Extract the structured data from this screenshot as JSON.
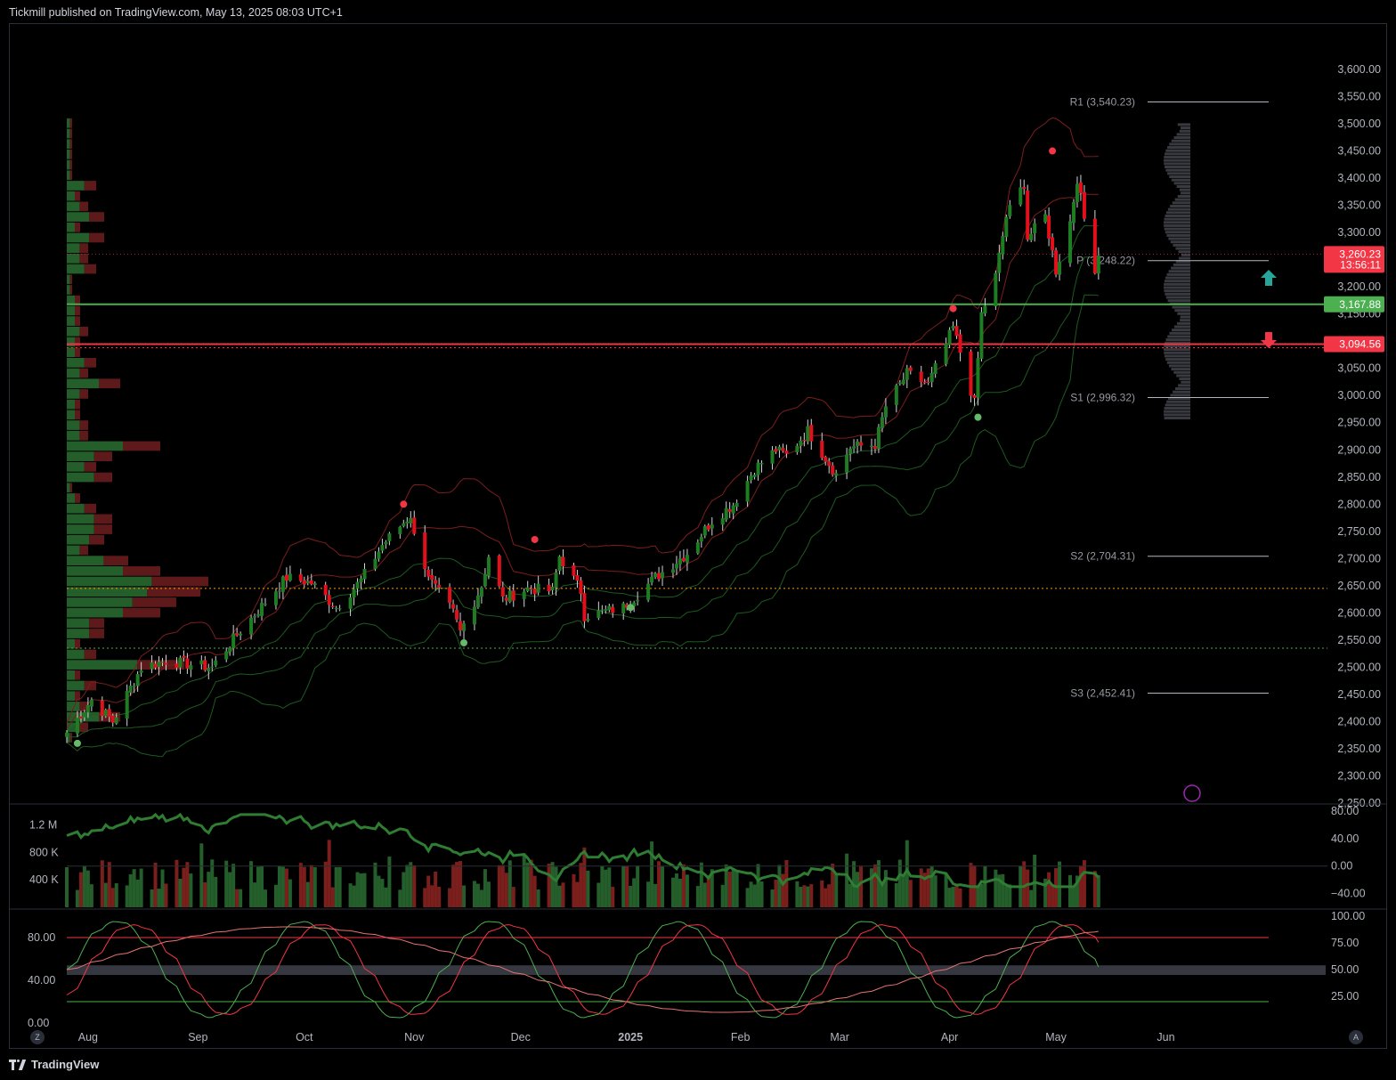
{
  "header": {
    "text": "Tickmill published on TradingView.com, May 13, 2025 08:03 UTC+1"
  },
  "footer": {
    "brand": "TradingView"
  },
  "buttons": {
    "left": "Z",
    "right": "A"
  },
  "colors": {
    "up": "#1e7d22",
    "down": "#e3101c",
    "bg": "#000000",
    "support": "#4caf50",
    "resistance": "#f23645",
    "poc": "#ff9800",
    "pivot_line": "#b2b5be",
    "bb_red": "#7a1f1c",
    "bb_green": "#1d5a1f",
    "vp_up": "#245e2b",
    "vp_down": "#5e1a1a"
  },
  "price_axis": {
    "ticks": [
      "3,600.00",
      "3,550.00",
      "3,500.00",
      "3,450.00",
      "3,400.00",
      "3,350.00",
      "3,300.00",
      "3,250.00",
      "3,200.00",
      "3,150.00",
      "3,100.00",
      "3,050.00",
      "3,000.00",
      "2,950.00",
      "2,900.00",
      "2,850.00",
      "2,800.00",
      "2,750.00",
      "2,700.00",
      "2,650.00",
      "2,600.00",
      "2,550.00",
      "2,500.00",
      "2,450.00",
      "2,400.00",
      "2,350.00",
      "2,300.00",
      "2,250.00"
    ]
  },
  "price_tags": {
    "last_price": "3,260.23",
    "countdown": "13:56:11",
    "support": "3,167.88",
    "resistance": "3,094.56"
  },
  "pivots": [
    {
      "label": "R1 (3,540.23)",
      "value": 3540.23
    },
    {
      "label": "P (3,248.22)",
      "value": 3248.22
    },
    {
      "label": "S1 (2,996.32)",
      "value": 2996.32
    },
    {
      "label": "S2 (2,704.31)",
      "value": 2704.31
    },
    {
      "label": "S3 (2,452.41)",
      "value": 2452.41
    }
  ],
  "time_axis": [
    "Aug",
    "Sep",
    "Oct",
    "Nov",
    "Dec",
    "2025",
    "Feb",
    "Mar",
    "Apr",
    "May",
    "Jun"
  ],
  "volume_axis": [
    "1.2 M",
    "800 K",
    "400 K"
  ],
  "rsi_axis": [
    "80.00",
    "40.00",
    "0.00",
    "−40.00"
  ],
  "stoch_axis_left": [
    "80.00",
    "40.00",
    "0.00"
  ],
  "stoch_axis_right": [
    "100.00",
    "75.00",
    "50.00",
    "25.00"
  ],
  "chart_data": {
    "type": "candlestick",
    "title": "",
    "ylim": [
      2250,
      3620
    ],
    "x_range": [
      "2024-07-26",
      "2025-06-30"
    ],
    "anchors": [
      [
        "2024-07-26",
        2380
      ],
      [
        "2024-08-02",
        2440
      ],
      [
        "2024-08-08",
        2400
      ],
      [
        "2024-08-16",
        2500
      ],
      [
        "2024-08-23",
        2512
      ],
      [
        "2024-08-30",
        2505
      ],
      [
        "2024-09-05",
        2500
      ],
      [
        "2024-09-12",
        2560
      ],
      [
        "2024-09-20",
        2620
      ],
      [
        "2024-09-26",
        2665
      ],
      [
        "2024-10-03",
        2655
      ],
      [
        "2024-10-10",
        2610
      ],
      [
        "2024-10-17",
        2660
      ],
      [
        "2024-10-23",
        2725
      ],
      [
        "2024-10-31",
        2780
      ],
      [
        "2024-11-01",
        2740
      ],
      [
        "2024-11-06",
        2655
      ],
      [
        "2024-11-12",
        2600
      ],
      [
        "2024-11-14",
        2565
      ],
      [
        "2024-11-20",
        2650
      ],
      [
        "2024-11-22",
        2705
      ],
      [
        "2024-11-26",
        2625
      ],
      [
        "2024-12-03",
        2645
      ],
      [
        "2024-12-10",
        2640
      ],
      [
        "2024-12-12",
        2705
      ],
      [
        "2024-12-18",
        2640
      ],
      [
        "2024-12-19",
        2595
      ],
      [
        "2024-12-30",
        2610
      ],
      [
        "2025-01-08",
        2665
      ],
      [
        "2025-01-17",
        2710
      ],
      [
        "2025-01-24",
        2770
      ],
      [
        "2025-01-30",
        2800
      ],
      [
        "2025-02-05",
        2865
      ],
      [
        "2025-02-11",
        2900
      ],
      [
        "2025-02-14",
        2890
      ],
      [
        "2025-02-20",
        2935
      ],
      [
        "2025-02-28",
        2855
      ],
      [
        "2025-03-04",
        2905
      ],
      [
        "2025-03-11",
        2910
      ],
      [
        "2025-03-14",
        2980
      ],
      [
        "2025-03-20",
        3040
      ],
      [
        "2025-03-26",
        3020
      ],
      [
        "2025-04-02",
        3125
      ],
      [
        "2025-04-04",
        3080
      ],
      [
        "2025-04-08",
        2985
      ],
      [
        "2025-04-10",
        3150
      ],
      [
        "2025-04-14",
        3220
      ],
      [
        "2025-04-17",
        3330
      ],
      [
        "2025-04-22",
        3390
      ],
      [
        "2025-04-23",
        3290
      ],
      [
        "2025-04-28",
        3330
      ],
      [
        "2025-05-01",
        3230
      ],
      [
        "2025-05-05",
        3320
      ],
      [
        "2025-05-07",
        3400
      ],
      [
        "2025-05-09",
        3325
      ],
      [
        "2025-05-12",
        3235
      ],
      [
        "2025-05-13",
        3260.23
      ]
    ],
    "key_levels": {
      "poc": 2645,
      "value_area_low": 2535,
      "support": 3167.88,
      "resistance": 3094.56,
      "last": 3260.23
    },
    "pivots": {
      "R1": 3540.23,
      "P": 3248.22,
      "S1": 2996.32,
      "S2": 2704.31,
      "S3": 2452.41
    },
    "volume": {
      "ylim": [
        0,
        1400000
      ]
    },
    "oscillator_rsi": {
      "ylim": [
        -60,
        100
      ],
      "levels": [
        80,
        40,
        0,
        -40
      ]
    },
    "stochastic": {
      "ylim": [
        0,
        100
      ],
      "overbought": 80,
      "oversold": 20
    }
  }
}
